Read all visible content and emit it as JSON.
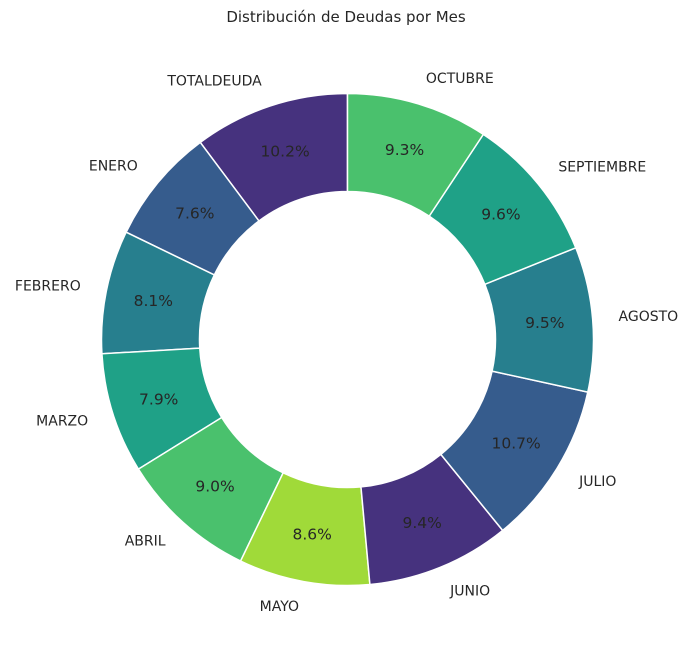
{
  "chart_data": {
    "type": "pie",
    "donut": true,
    "title": "Distribución de Deudas por Mes",
    "categories": [
      "TOTALDEUDA",
      "ENERO",
      "FEBRERO",
      "MARZO",
      "ABRIL",
      "MAYO",
      "JUNIO",
      "JULIO",
      "AGOSTO",
      "SEPTIEMBRE",
      "OCTUBRE"
    ],
    "values": [
      10.2,
      7.6,
      8.1,
      7.9,
      9.0,
      8.6,
      9.4,
      10.7,
      9.5,
      9.6,
      9.3
    ],
    "value_labels": [
      "10.2%",
      "7.6%",
      "8.1%",
      "7.9%",
      "9.0%",
      "8.6%",
      "9.4%",
      "10.7%",
      "9.5%",
      "9.6%",
      "9.3%"
    ],
    "colors": [
      "#46327e",
      "#365c8d",
      "#277f8e",
      "#1fa187",
      "#4ac16d",
      "#a0da39",
      "#46327e",
      "#365c8d",
      "#277f8e",
      "#1fa187",
      "#4ac16d"
    ],
    "start_angle": "top, counter-clockwise",
    "legend": "none"
  }
}
